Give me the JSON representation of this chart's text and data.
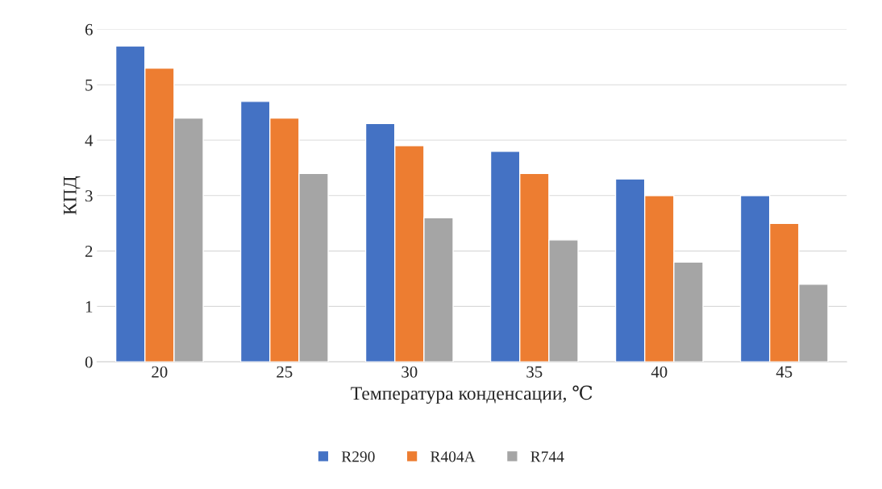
{
  "chart_data": {
    "type": "bar",
    "xlabel": "Температура конденсации, ℃",
    "ylabel": "КПД",
    "categories": [
      "20",
      "25",
      "30",
      "35",
      "40",
      "45"
    ],
    "series": [
      {
        "name": "R290",
        "color": "#4472c4",
        "values": [
          5.7,
          4.7,
          4.3,
          3.8,
          3.3,
          3.0
        ]
      },
      {
        "name": "R404A",
        "color": "#ed7d31",
        "values": [
          5.3,
          4.4,
          3.9,
          3.4,
          3.0,
          2.5
        ]
      },
      {
        "name": "R744",
        "color": "#a5a5a5",
        "values": [
          4.4,
          3.4,
          2.6,
          2.2,
          1.8,
          1.4
        ]
      }
    ],
    "ylim": [
      0,
      6
    ],
    "yticks": [
      0,
      1,
      2,
      3,
      4,
      5,
      6
    ],
    "grid": "y",
    "legend": "bottom"
  }
}
